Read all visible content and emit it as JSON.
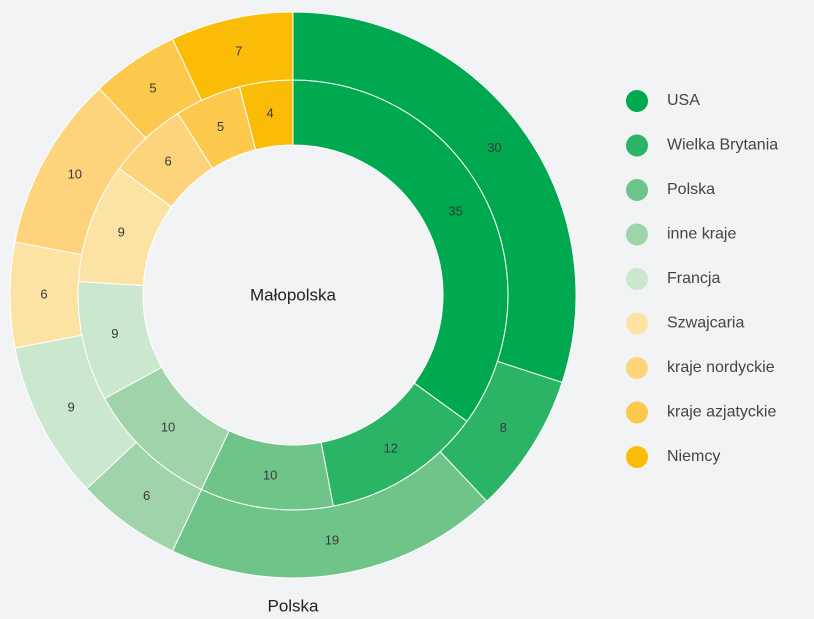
{
  "chart_data": {
    "type": "donut",
    "categories": [
      "USA",
      "Wielka Brytania",
      "Polska",
      "inne kraje",
      "Francja",
      "Szwajcaria",
      "kraje nordyckie",
      "kraje azjatyckie",
      "Niemcy"
    ],
    "colors": [
      "#00a84f",
      "#2bb465",
      "#6fc48a",
      "#9fd4aa",
      "#cbe7cd",
      "#fde3a3",
      "#fdd47c",
      "#fcc94d",
      "#fbbc07"
    ],
    "series": [
      {
        "name": "Małopolska",
        "values": [
          35,
          12,
          10,
          10,
          9,
          9,
          6,
          5,
          4
        ]
      },
      {
        "name": "Polska",
        "values": [
          30,
          8,
          19,
          6,
          9,
          6,
          10,
          5,
          7
        ]
      }
    ],
    "legend": "right"
  }
}
